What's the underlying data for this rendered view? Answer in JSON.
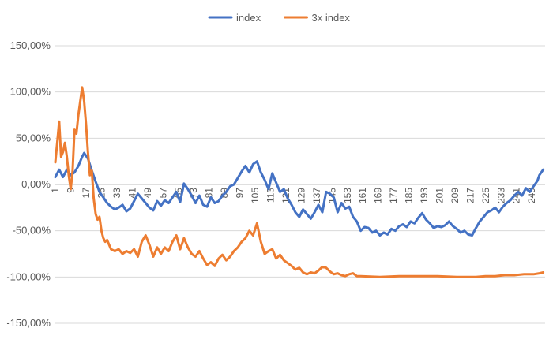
{
  "chart_data": {
    "type": "line",
    "title": "",
    "xlabel": "",
    "ylabel": "",
    "ylim": [
      -1.5,
      1.5
    ],
    "y_ticks": [
      1.5,
      1.0,
      0.5,
      0.0,
      -0.5,
      -1.0,
      -1.5
    ],
    "y_tick_labels": [
      "150,00%",
      "100,00%",
      "50,00%",
      "0,00%",
      "-50,00%",
      "-100,00%",
      "-150,00%"
    ],
    "x_range": [
      1,
      256
    ],
    "x_ticks": [
      1,
      9,
      17,
      25,
      33,
      41,
      49,
      57,
      65,
      73,
      81,
      89,
      97,
      105,
      113,
      121,
      129,
      137,
      145,
      153,
      161,
      169,
      177,
      185,
      193,
      201,
      209,
      217,
      225,
      233,
      241,
      249
    ],
    "x_tick_labels": [
      "1",
      "9",
      "17",
      "25",
      "33",
      "41",
      "49",
      "57",
      "65",
      "73",
      "81",
      "89",
      "97",
      "105",
      "113",
      "121",
      "129",
      "137",
      "145",
      "153",
      "161",
      "169",
      "177",
      "185",
      "193",
      "201",
      "209",
      "217",
      "225",
      "233",
      "241",
      "249"
    ],
    "grid": true,
    "legend_position": "top",
    "series": [
      {
        "name": "index",
        "color": "#4472C4",
        "points": [
          [
            1,
            0.08
          ],
          [
            3,
            0.16
          ],
          [
            5,
            0.08
          ],
          [
            7,
            0.16
          ],
          [
            9,
            0.1
          ],
          [
            11,
            0.13
          ],
          [
            13,
            0.2
          ],
          [
            15,
            0.3
          ],
          [
            16,
            0.34
          ],
          [
            18,
            0.28
          ],
          [
            20,
            0.15
          ],
          [
            22,
            0.03
          ],
          [
            24,
            -0.08
          ],
          [
            26,
            -0.14
          ],
          [
            28,
            -0.2
          ],
          [
            30,
            -0.24
          ],
          [
            32,
            -0.27
          ],
          [
            34,
            -0.25
          ],
          [
            36,
            -0.22
          ],
          [
            38,
            -0.29
          ],
          [
            40,
            -0.26
          ],
          [
            42,
            -0.18
          ],
          [
            44,
            -0.1
          ],
          [
            46,
            -0.15
          ],
          [
            48,
            -0.2
          ],
          [
            50,
            -0.25
          ],
          [
            52,
            -0.28
          ],
          [
            54,
            -0.18
          ],
          [
            56,
            -0.23
          ],
          [
            58,
            -0.17
          ],
          [
            60,
            -0.2
          ],
          [
            62,
            -0.14
          ],
          [
            64,
            -0.08
          ],
          [
            66,
            -0.19
          ],
          [
            68,
            0.01
          ],
          [
            70,
            -0.05
          ],
          [
            72,
            -0.12
          ],
          [
            74,
            -0.2
          ],
          [
            76,
            -0.12
          ],
          [
            78,
            -0.22
          ],
          [
            80,
            -0.24
          ],
          [
            82,
            -0.14
          ],
          [
            84,
            -0.2
          ],
          [
            86,
            -0.18
          ],
          [
            88,
            -0.12
          ],
          [
            90,
            -0.08
          ],
          [
            92,
            -0.02
          ],
          [
            94,
            0.0
          ],
          [
            96,
            0.07
          ],
          [
            98,
            0.14
          ],
          [
            100,
            0.2
          ],
          [
            102,
            0.13
          ],
          [
            104,
            0.22
          ],
          [
            106,
            0.25
          ],
          [
            108,
            0.13
          ],
          [
            110,
            0.05
          ],
          [
            112,
            -0.05
          ],
          [
            114,
            0.12
          ],
          [
            116,
            0.02
          ],
          [
            118,
            -0.08
          ],
          [
            120,
            -0.05
          ],
          [
            122,
            -0.15
          ],
          [
            124,
            -0.22
          ],
          [
            126,
            -0.3
          ],
          [
            128,
            -0.35
          ],
          [
            130,
            -0.27
          ],
          [
            132,
            -0.32
          ],
          [
            134,
            -0.37
          ],
          [
            136,
            -0.3
          ],
          [
            138,
            -0.22
          ],
          [
            140,
            -0.3
          ],
          [
            142,
            -0.08
          ],
          [
            144,
            -0.1
          ],
          [
            146,
            -0.14
          ],
          [
            148,
            -0.3
          ],
          [
            150,
            -0.2
          ],
          [
            152,
            -0.26
          ],
          [
            154,
            -0.24
          ],
          [
            156,
            -0.35
          ],
          [
            158,
            -0.4
          ],
          [
            160,
            -0.5
          ],
          [
            162,
            -0.46
          ],
          [
            164,
            -0.47
          ],
          [
            166,
            -0.52
          ],
          [
            168,
            -0.5
          ],
          [
            170,
            -0.55
          ],
          [
            172,
            -0.52
          ],
          [
            174,
            -0.54
          ],
          [
            176,
            -0.48
          ],
          [
            178,
            -0.5
          ],
          [
            180,
            -0.45
          ],
          [
            182,
            -0.43
          ],
          [
            184,
            -0.46
          ],
          [
            186,
            -0.4
          ],
          [
            188,
            -0.42
          ],
          [
            190,
            -0.36
          ],
          [
            192,
            -0.31
          ],
          [
            194,
            -0.38
          ],
          [
            196,
            -0.42
          ],
          [
            198,
            -0.47
          ],
          [
            200,
            -0.45
          ],
          [
            202,
            -0.46
          ],
          [
            204,
            -0.44
          ],
          [
            206,
            -0.4
          ],
          [
            208,
            -0.45
          ],
          [
            210,
            -0.48
          ],
          [
            212,
            -0.52
          ],
          [
            214,
            -0.5
          ],
          [
            216,
            -0.54
          ],
          [
            218,
            -0.55
          ],
          [
            220,
            -0.47
          ],
          [
            222,
            -0.4
          ],
          [
            224,
            -0.35
          ],
          [
            226,
            -0.3
          ],
          [
            228,
            -0.28
          ],
          [
            230,
            -0.25
          ],
          [
            232,
            -0.3
          ],
          [
            234,
            -0.24
          ],
          [
            236,
            -0.2
          ],
          [
            238,
            -0.17
          ],
          [
            240,
            -0.12
          ],
          [
            242,
            -0.08
          ],
          [
            244,
            -0.12
          ],
          [
            246,
            -0.04
          ],
          [
            248,
            -0.08
          ],
          [
            250,
            -0.02
          ],
          [
            252,
            0.04
          ],
          [
            253,
            0.1
          ],
          [
            255,
            0.16
          ]
        ]
      },
      {
        "name": "3x index",
        "color": "#ED7D31",
        "points": [
          [
            1,
            0.24
          ],
          [
            2,
            0.45
          ],
          [
            3,
            0.68
          ],
          [
            4,
            0.3
          ],
          [
            5,
            0.35
          ],
          [
            6,
            0.45
          ],
          [
            7,
            0.3
          ],
          [
            8,
            0.1
          ],
          [
            9,
            -0.05
          ],
          [
            10,
            0.15
          ],
          [
            11,
            0.6
          ],
          [
            12,
            0.55
          ],
          [
            13,
            0.75
          ],
          [
            14,
            0.9
          ],
          [
            15,
            1.05
          ],
          [
            16,
            0.9
          ],
          [
            17,
            0.65
          ],
          [
            18,
            0.35
          ],
          [
            19,
            0.1
          ],
          [
            20,
            0.15
          ],
          [
            21,
            -0.15
          ],
          [
            22,
            -0.32
          ],
          [
            23,
            -0.38
          ],
          [
            24,
            -0.35
          ],
          [
            25,
            -0.5
          ],
          [
            26,
            -0.58
          ],
          [
            27,
            -0.62
          ],
          [
            28,
            -0.6
          ],
          [
            30,
            -0.7
          ],
          [
            32,
            -0.72
          ],
          [
            34,
            -0.7
          ],
          [
            36,
            -0.75
          ],
          [
            38,
            -0.72
          ],
          [
            40,
            -0.74
          ],
          [
            42,
            -0.7
          ],
          [
            44,
            -0.78
          ],
          [
            46,
            -0.62
          ],
          [
            48,
            -0.55
          ],
          [
            50,
            -0.65
          ],
          [
            52,
            -0.78
          ],
          [
            54,
            -0.68
          ],
          [
            56,
            -0.75
          ],
          [
            58,
            -0.68
          ],
          [
            60,
            -0.72
          ],
          [
            62,
            -0.62
          ],
          [
            64,
            -0.55
          ],
          [
            66,
            -0.7
          ],
          [
            68,
            -0.58
          ],
          [
            70,
            -0.68
          ],
          [
            72,
            -0.75
          ],
          [
            74,
            -0.78
          ],
          [
            76,
            -0.72
          ],
          [
            78,
            -0.8
          ],
          [
            80,
            -0.87
          ],
          [
            82,
            -0.84
          ],
          [
            84,
            -0.88
          ],
          [
            86,
            -0.8
          ],
          [
            88,
            -0.76
          ],
          [
            90,
            -0.82
          ],
          [
            92,
            -0.78
          ],
          [
            94,
            -0.72
          ],
          [
            96,
            -0.68
          ],
          [
            98,
            -0.62
          ],
          [
            100,
            -0.58
          ],
          [
            102,
            -0.5
          ],
          [
            104,
            -0.55
          ],
          [
            106,
            -0.42
          ],
          [
            108,
            -0.62
          ],
          [
            110,
            -0.75
          ],
          [
            112,
            -0.72
          ],
          [
            114,
            -0.7
          ],
          [
            116,
            -0.8
          ],
          [
            118,
            -0.76
          ],
          [
            120,
            -0.82
          ],
          [
            122,
            -0.85
          ],
          [
            124,
            -0.88
          ],
          [
            126,
            -0.92
          ],
          [
            128,
            -0.9
          ],
          [
            130,
            -0.95
          ],
          [
            132,
            -0.97
          ],
          [
            134,
            -0.95
          ],
          [
            136,
            -0.96
          ],
          [
            138,
            -0.93
          ],
          [
            140,
            -0.89
          ],
          [
            142,
            -0.9
          ],
          [
            144,
            -0.94
          ],
          [
            146,
            -0.97
          ],
          [
            148,
            -0.96
          ],
          [
            150,
            -0.98
          ],
          [
            152,
            -0.99
          ],
          [
            154,
            -0.97
          ],
          [
            156,
            -0.96
          ],
          [
            158,
            -0.99
          ],
          [
            160,
            -0.99
          ],
          [
            170,
            -1.0
          ],
          [
            180,
            -0.99
          ],
          [
            190,
            -0.99
          ],
          [
            200,
            -0.99
          ],
          [
            210,
            -1.0
          ],
          [
            220,
            -1.0
          ],
          [
            225,
            -0.99
          ],
          [
            230,
            -0.99
          ],
          [
            235,
            -0.98
          ],
          [
            240,
            -0.98
          ],
          [
            245,
            -0.97
          ],
          [
            250,
            -0.97
          ],
          [
            253,
            -0.96
          ],
          [
            255,
            -0.95
          ]
        ]
      }
    ]
  }
}
